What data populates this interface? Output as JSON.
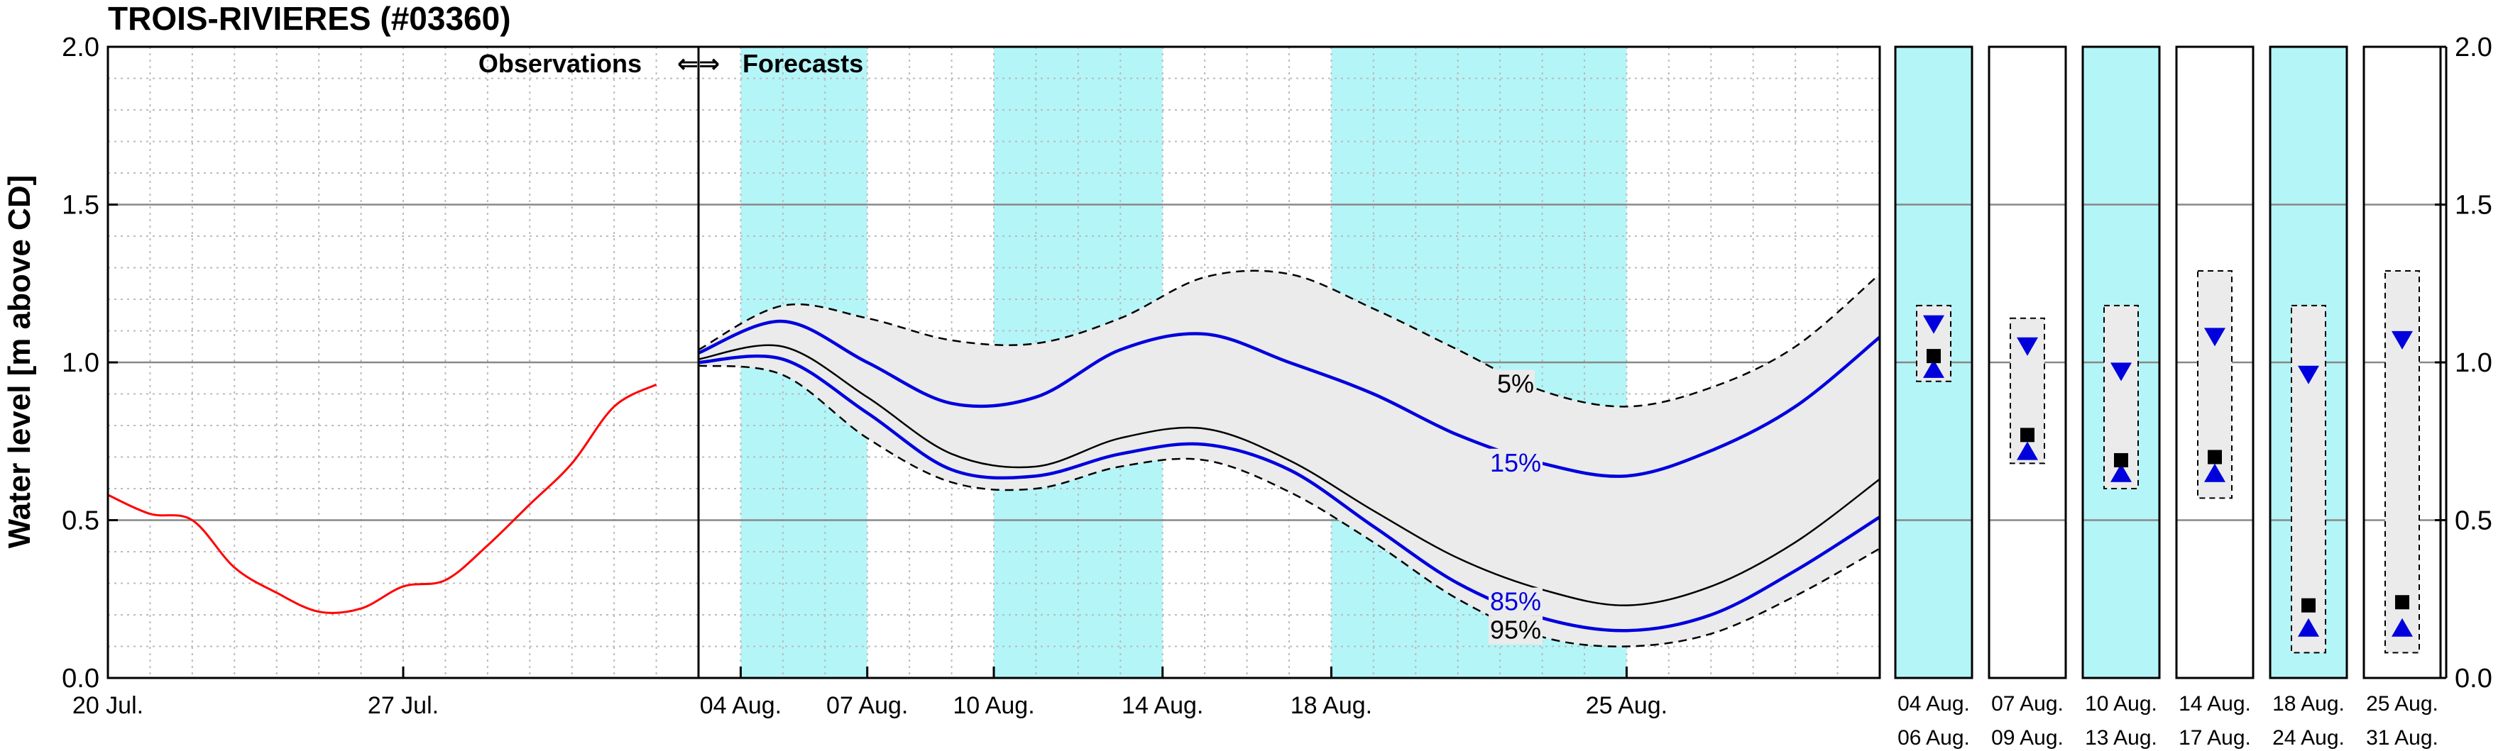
{
  "chart_data": {
    "type": "line",
    "title": "TROIS-RIVIERES (#03360)",
    "ylabel": "Water level [m above CD]",
    "ylim": [
      0,
      2
    ],
    "yticks": [
      "0.0",
      "0.5",
      "1.0",
      "1.5",
      "2.0"
    ],
    "grid": true,
    "x_range": [
      "2024-07-20",
      "2024-08-31"
    ],
    "forecast_start": "2024-08-03",
    "section_labels": {
      "observations": "Observations",
      "arrows": "⇐⇒",
      "forecasts": "Forecasts"
    },
    "x_ticks": [
      {
        "date": "2024-07-20",
        "label": "20 Jul."
      },
      {
        "date": "2024-07-27",
        "label": "27 Jul."
      },
      {
        "date": "2024-08-04",
        "label": "04 Aug."
      },
      {
        "date": "2024-08-07",
        "label": "07 Aug."
      },
      {
        "date": "2024-08-10",
        "label": "10 Aug."
      },
      {
        "date": "2024-08-14",
        "label": "14 Aug."
      },
      {
        "date": "2024-08-18",
        "label": "18 Aug."
      },
      {
        "date": "2024-08-25",
        "label": "25 Aug."
      }
    ],
    "shaded_periods": [
      [
        "2024-08-04",
        "2024-08-07"
      ],
      [
        "2024-08-10",
        "2024-08-14"
      ],
      [
        "2024-08-18",
        "2024-08-25"
      ]
    ],
    "observed": {
      "color": "#ff0000",
      "x": [
        "2024-07-20",
        "2024-07-21",
        "2024-07-22",
        "2024-07-23",
        "2024-07-24",
        "2024-07-25",
        "2024-07-26",
        "2024-07-27",
        "2024-07-28",
        "2024-07-29",
        "2024-07-30",
        "2024-07-31",
        "2024-08-01",
        "2024-08-02"
      ],
      "y": [
        0.58,
        0.52,
        0.5,
        0.35,
        0.27,
        0.21,
        0.22,
        0.29,
        0.31,
        0.42,
        0.55,
        0.68,
        0.86,
        0.93
      ]
    },
    "forecast_x": [
      "2024-08-03",
      "2024-08-05",
      "2024-08-07",
      "2024-08-09",
      "2024-08-11",
      "2024-08-13",
      "2024-08-15",
      "2024-08-17",
      "2024-08-19",
      "2024-08-21",
      "2024-08-23",
      "2024-08-25",
      "2024-08-27",
      "2024-08-29",
      "2024-08-31"
    ],
    "series": [
      {
        "name": "5%",
        "color": "#000000",
        "style": "dashed",
        "y": [
          1.04,
          1.18,
          1.14,
          1.07,
          1.06,
          1.14,
          1.27,
          1.28,
          1.17,
          1.04,
          0.91,
          0.86,
          0.92,
          1.05,
          1.28
        ]
      },
      {
        "name": "15%",
        "color": "#0000dd",
        "style": "solid",
        "y": [
          1.03,
          1.13,
          1.0,
          0.87,
          0.89,
          1.04,
          1.09,
          1.0,
          0.9,
          0.77,
          0.68,
          0.64,
          0.72,
          0.86,
          1.08
        ]
      },
      {
        "name": "",
        "color": "#000000",
        "style": "solid",
        "y": [
          1.01,
          1.05,
          0.89,
          0.71,
          0.67,
          0.76,
          0.79,
          0.69,
          0.53,
          0.38,
          0.28,
          0.23,
          0.29,
          0.43,
          0.63
        ]
      },
      {
        "name": "85%",
        "color": "#0000dd",
        "style": "solid",
        "y": [
          1.0,
          1.01,
          0.84,
          0.66,
          0.64,
          0.71,
          0.74,
          0.66,
          0.48,
          0.3,
          0.19,
          0.15,
          0.2,
          0.34,
          0.51
        ]
      },
      {
        "name": "95%",
        "color": "#000000",
        "style": "dashed",
        "y": [
          0.99,
          0.96,
          0.76,
          0.62,
          0.6,
          0.67,
          0.69,
          0.59,
          0.43,
          0.25,
          0.13,
          0.1,
          0.14,
          0.26,
          0.41
        ]
      }
    ],
    "windows": [
      {
        "top": "04  Aug.",
        "bottom": "06  Aug.",
        "shaded": true,
        "box": [
          0.94,
          1.18
        ],
        "tri_down": 1.12,
        "square": 1.02,
        "tri_up": 0.98
      },
      {
        "top": "07  Aug.",
        "bottom": "09  Aug.",
        "shaded": false,
        "box": [
          0.68,
          1.14
        ],
        "tri_down": 1.05,
        "square": 0.77,
        "tri_up": 0.72
      },
      {
        "top": "10  Aug.",
        "bottom": "13  Aug.",
        "shaded": true,
        "box": [
          0.6,
          1.18
        ],
        "tri_down": 0.97,
        "square": 0.69,
        "tri_up": 0.65
      },
      {
        "top": "14  Aug.",
        "bottom": "17  Aug.",
        "shaded": false,
        "box": [
          0.57,
          1.29
        ],
        "tri_down": 1.08,
        "square": 0.7,
        "tri_up": 0.65
      },
      {
        "top": "18  Aug.",
        "bottom": "24  Aug.",
        "shaded": true,
        "box": [
          0.08,
          1.18
        ],
        "tri_down": 0.96,
        "square": 0.23,
        "tri_up": 0.16
      },
      {
        "top": "25  Aug.",
        "bottom": "31  Aug.",
        "shaded": false,
        "box": [
          0.08,
          1.29
        ],
        "tri_down": 1.07,
        "square": 0.24,
        "tri_up": 0.16
      }
    ],
    "colors": {
      "shade": "#b4f5f8",
      "band": "#ebebeb",
      "observed": "#ff0000",
      "blue": "#0000dd"
    }
  }
}
